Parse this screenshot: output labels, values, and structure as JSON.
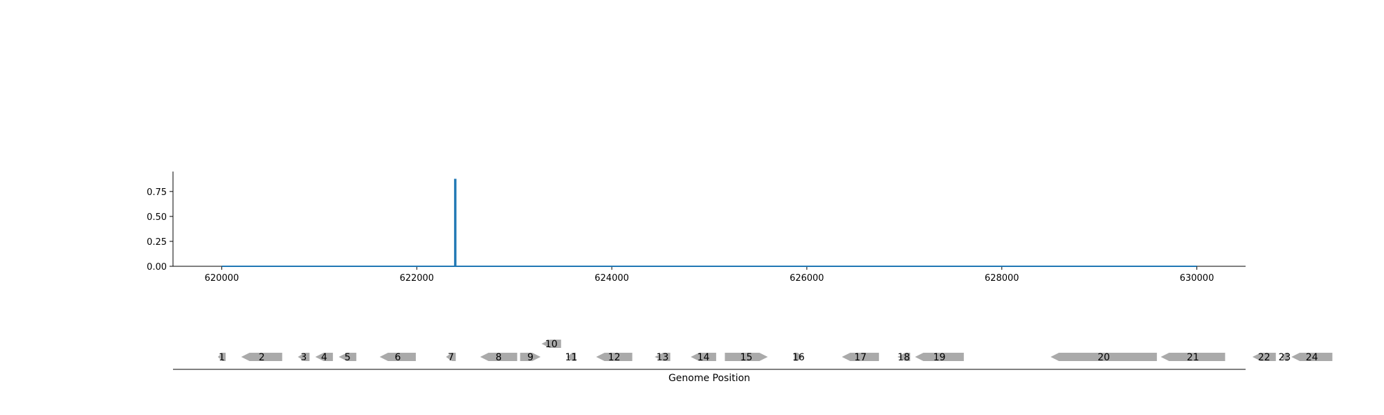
{
  "chart_data": [
    {
      "type": "line",
      "title": "",
      "xlabel": "",
      "ylabel": "",
      "xlim": [
        619500,
        630500
      ],
      "ylim": [
        0,
        0.95
      ],
      "x_ticks": [
        620000,
        622000,
        624000,
        626000,
        628000,
        630000
      ],
      "x_tick_labels": [
        "620000",
        "622000",
        "624000",
        "626000",
        "628000",
        "630000"
      ],
      "y_ticks": [
        0,
        0.25,
        0.5,
        0.75
      ],
      "y_tick_labels": [
        "0.00",
        "0.25",
        "0.50",
        "0.75"
      ],
      "grid": false,
      "color": "#1f77b4",
      "series": [
        {
          "x": [
            620000,
            622390,
            622390,
            622400,
            622400,
            630000
          ],
          "y": [
            0,
            0,
            0.87,
            0.87,
            0,
            0
          ]
        }
      ]
    },
    {
      "type": "gene-track",
      "xlabel": "Genome Position",
      "xlim": [
        619500,
        630500
      ],
      "color": "#aaaaaa",
      "genes": [
        {
          "label": "1",
          "start": 619960,
          "end": 620040,
          "strand": -1,
          "row": 0
        },
        {
          "label": "2",
          "start": 620200,
          "end": 620620,
          "strand": -1,
          "row": 0
        },
        {
          "label": "3",
          "start": 620780,
          "end": 620900,
          "strand": -1,
          "row": 0
        },
        {
          "label": "4",
          "start": 620960,
          "end": 621140,
          "strand": -1,
          "row": 0
        },
        {
          "label": "5",
          "start": 621200,
          "end": 621380,
          "strand": -1,
          "row": 0
        },
        {
          "label": "6",
          "start": 621620,
          "end": 621990,
          "strand": -1,
          "row": 0
        },
        {
          "label": "7",
          "start": 622300,
          "end": 622400,
          "strand": -1,
          "row": 0
        },
        {
          "label": "8",
          "start": 622650,
          "end": 623030,
          "strand": -1,
          "row": 0
        },
        {
          "label": "9",
          "start": 623060,
          "end": 623270,
          "strand": 1,
          "row": 0
        },
        {
          "label": "10",
          "start": 623280,
          "end": 623480,
          "strand": -1,
          "row": 1
        },
        {
          "label": "11",
          "start": 623540,
          "end": 623630,
          "strand": -1,
          "row": 0
        },
        {
          "label": "12",
          "start": 623840,
          "end": 624210,
          "strand": -1,
          "row": 0
        },
        {
          "label": "13",
          "start": 624440,
          "end": 624600,
          "strand": -1,
          "row": 0
        },
        {
          "label": "14",
          "start": 624810,
          "end": 625070,
          "strand": -1,
          "row": 0
        },
        {
          "label": "15",
          "start": 625160,
          "end": 625600,
          "strand": 1,
          "row": 0
        },
        {
          "label": "16",
          "start": 625870,
          "end": 625960,
          "strand": 1,
          "row": 0
        },
        {
          "label": "17",
          "start": 626360,
          "end": 626740,
          "strand": -1,
          "row": 0
        },
        {
          "label": "18",
          "start": 626930,
          "end": 627060,
          "strand": -1,
          "row": 0
        },
        {
          "label": "19",
          "start": 627110,
          "end": 627610,
          "strand": -1,
          "row": 0
        },
        {
          "label": "20",
          "start": 628500,
          "end": 629590,
          "strand": -1,
          "row": 0
        },
        {
          "label": "21",
          "start": 629630,
          "end": 630290,
          "strand": -1,
          "row": 0
        },
        {
          "label": "22",
          "start": 630570,
          "end": 630810,
          "strand": -1,
          "row": 0
        },
        {
          "label": "23",
          "start": 630860,
          "end": 630940,
          "strand": -1,
          "row": 0
        },
        {
          "label": "24",
          "start": 630970,
          "end": 631390,
          "strand": -1,
          "row": 0
        }
      ]
    }
  ]
}
